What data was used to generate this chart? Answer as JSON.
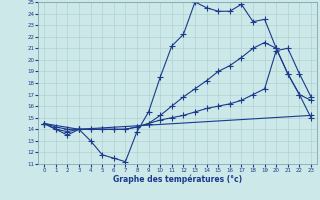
{
  "xlabel": "Graphe des températures (°c)",
  "xlim": [
    -0.5,
    23.5
  ],
  "ylim": [
    11,
    25
  ],
  "xticks": [
    0,
    1,
    2,
    3,
    4,
    5,
    6,
    7,
    8,
    9,
    10,
    11,
    12,
    13,
    14,
    15,
    16,
    17,
    18,
    19,
    20,
    21,
    22,
    23
  ],
  "yticks": [
    11,
    12,
    13,
    14,
    15,
    16,
    17,
    18,
    19,
    20,
    21,
    22,
    23,
    24,
    25
  ],
  "bg_color": "#cce8e8",
  "line_color": "#1a3a8c",
  "grid_color": "#aacccc",
  "line1": {
    "x": [
      0,
      1,
      2,
      3,
      4,
      5,
      6,
      7,
      8,
      9,
      10,
      11,
      12,
      13,
      14,
      15,
      16,
      17,
      18,
      19,
      20,
      21,
      22,
      23
    ],
    "y": [
      14.5,
      14,
      13.5,
      14,
      13,
      11.8,
      11.5,
      11.2,
      13.8,
      15.5,
      18.5,
      21.2,
      22.2,
      25,
      24.5,
      24.2,
      24.2,
      24.8,
      23.3,
      23.5,
      21,
      18.8,
      17,
      15
    ]
  },
  "line2": {
    "x": [
      0,
      1,
      2,
      3,
      4,
      5,
      6,
      7,
      8,
      9,
      10,
      11,
      12,
      13,
      14,
      15,
      16,
      17,
      18,
      19,
      20,
      21,
      22,
      23
    ],
    "y": [
      14.5,
      14.2,
      14,
      14,
      14,
      14,
      14,
      14,
      14.2,
      14.5,
      15.2,
      16,
      16.8,
      17.5,
      18.2,
      19,
      19.5,
      20.2,
      21,
      21.5,
      21,
      18.8,
      17,
      16.5
    ]
  },
  "line3": {
    "x": [
      0,
      1,
      2,
      3,
      4,
      5,
      6,
      7,
      8,
      9,
      10,
      11,
      12,
      13,
      14,
      15,
      16,
      17,
      18,
      19,
      20,
      21,
      22,
      23
    ],
    "y": [
      14.5,
      14,
      13.8,
      14,
      14,
      14,
      14,
      14,
      14.2,
      14.5,
      14.8,
      15,
      15.2,
      15.5,
      15.8,
      16,
      16.2,
      16.5,
      17,
      17.5,
      20.8,
      21,
      18.8,
      16.8
    ]
  },
  "line4": {
    "x": [
      0,
      3,
      23
    ],
    "y": [
      14.5,
      14,
      15.2
    ]
  }
}
